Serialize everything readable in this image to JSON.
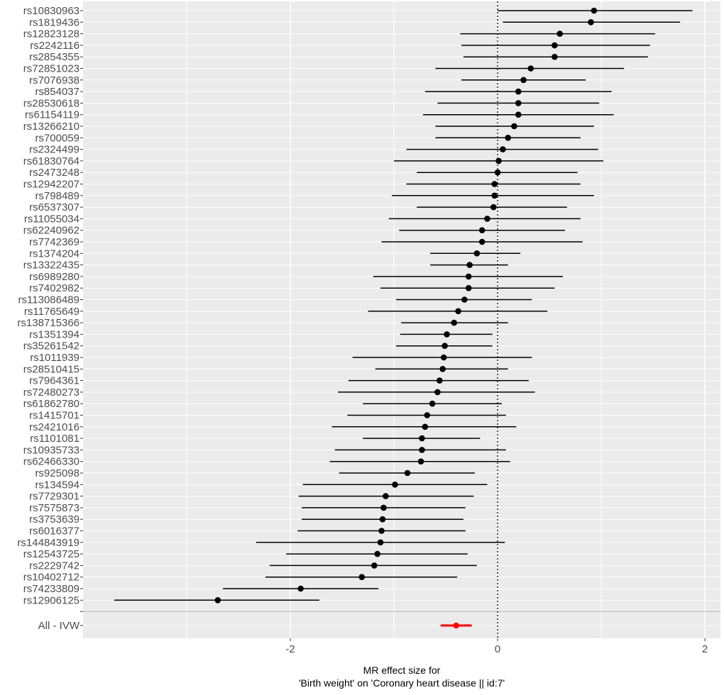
{
  "chart_data": {
    "type": "forest",
    "xlabel_line1": "MR effect size for",
    "xlabel_line2": "'Birth weight' on 'Coronary heart disease || id:7'",
    "xlim": [
      -4.0,
      2.15
    ],
    "x_ticks": [
      -2,
      0,
      2
    ],
    "x_tick_labels": [
      "-2",
      "0",
      "2"
    ],
    "reference_line": 0,
    "grid": true,
    "snps": [
      {
        "label": "rs10830963",
        "est": 0.93,
        "lo": 0.0,
        "hi": 1.88
      },
      {
        "label": "rs1819436",
        "est": 0.9,
        "lo": 0.05,
        "hi": 1.76
      },
      {
        "label": "rs12823128",
        "est": 0.6,
        "lo": -0.36,
        "hi": 1.52
      },
      {
        "label": "rs2242116",
        "est": 0.55,
        "lo": -0.35,
        "hi": 1.47
      },
      {
        "label": "rs2854355",
        "est": 0.55,
        "lo": -0.33,
        "hi": 1.45
      },
      {
        "label": "rs72851023",
        "est": 0.32,
        "lo": -0.6,
        "hi": 1.22
      },
      {
        "label": "rs7076938",
        "est": 0.25,
        "lo": -0.35,
        "hi": 0.85
      },
      {
        "label": "rs854037",
        "est": 0.2,
        "lo": -0.7,
        "hi": 1.1
      },
      {
        "label": "rs28530618",
        "est": 0.2,
        "lo": -0.58,
        "hi": 0.98
      },
      {
        "label": "rs61154119",
        "est": 0.2,
        "lo": -0.72,
        "hi": 1.12
      },
      {
        "label": "rs13266210",
        "est": 0.16,
        "lo": -0.6,
        "hi": 0.93
      },
      {
        "label": "rs700059",
        "est": 0.1,
        "lo": -0.6,
        "hi": 0.8
      },
      {
        "label": "rs2324499",
        "est": 0.05,
        "lo": -0.88,
        "hi": 0.97
      },
      {
        "label": "rs61830764",
        "est": 0.01,
        "lo": -1.0,
        "hi": 1.02
      },
      {
        "label": "rs2473248",
        "est": 0.0,
        "lo": -0.78,
        "hi": 0.77
      },
      {
        "label": "rs12942207",
        "est": -0.03,
        "lo": -0.88,
        "hi": 0.8
      },
      {
        "label": "rs798489",
        "est": -0.03,
        "lo": -1.02,
        "hi": 0.93
      },
      {
        "label": "rs6537307",
        "est": -0.04,
        "lo": -0.78,
        "hi": 0.67
      },
      {
        "label": "rs11055034",
        "est": -0.1,
        "lo": -1.05,
        "hi": 0.8
      },
      {
        "label": "rs62240962",
        "est": -0.15,
        "lo": -0.95,
        "hi": 0.65
      },
      {
        "label": "rs7742369",
        "est": -0.15,
        "lo": -1.12,
        "hi": 0.82
      },
      {
        "label": "rs1374204",
        "est": -0.2,
        "lo": -0.65,
        "hi": 0.22
      },
      {
        "label": "rs13322435",
        "est": -0.27,
        "lo": -0.65,
        "hi": 0.1
      },
      {
        "label": "rs6989280",
        "est": -0.28,
        "lo": -1.2,
        "hi": 0.63
      },
      {
        "label": "rs7402982",
        "est": -0.28,
        "lo": -1.13,
        "hi": 0.55
      },
      {
        "label": "rs113086489",
        "est": -0.32,
        "lo": -0.98,
        "hi": 0.33
      },
      {
        "label": "rs11765649",
        "est": -0.38,
        "lo": -1.25,
        "hi": 0.48
      },
      {
        "label": "rs138715366",
        "est": -0.42,
        "lo": -0.93,
        "hi": 0.1
      },
      {
        "label": "rs1351394",
        "est": -0.49,
        "lo": -0.94,
        "hi": -0.05
      },
      {
        "label": "rs35261542",
        "est": -0.51,
        "lo": -0.98,
        "hi": -0.05
      },
      {
        "label": "rs1011939",
        "est": -0.52,
        "lo": -1.4,
        "hi": 0.33
      },
      {
        "label": "rs28510415",
        "est": -0.53,
        "lo": -1.18,
        "hi": 0.1
      },
      {
        "label": "rs7964361",
        "est": -0.56,
        "lo": -1.44,
        "hi": 0.3
      },
      {
        "label": "rs72480273",
        "est": -0.58,
        "lo": -1.54,
        "hi": 0.36
      },
      {
        "label": "rs61862780",
        "est": -0.63,
        "lo": -1.3,
        "hi": 0.04
      },
      {
        "label": "rs1415701",
        "est": -0.68,
        "lo": -1.45,
        "hi": 0.08
      },
      {
        "label": "rs2421016",
        "est": -0.7,
        "lo": -1.6,
        "hi": 0.18
      },
      {
        "label": "rs1101081",
        "est": -0.73,
        "lo": -1.3,
        "hi": -0.17
      },
      {
        "label": "rs10935733",
        "est": -0.73,
        "lo": -1.57,
        "hi": 0.08
      },
      {
        "label": "rs62466330",
        "est": -0.74,
        "lo": -1.62,
        "hi": 0.12
      },
      {
        "label": "rs925098",
        "est": -0.87,
        "lo": -1.53,
        "hi": -0.22
      },
      {
        "label": "rs134594",
        "est": -0.99,
        "lo": -1.88,
        "hi": -0.1
      },
      {
        "label": "rs7729301",
        "est": -1.08,
        "lo": -1.92,
        "hi": -0.23
      },
      {
        "label": "rs7575873",
        "est": -1.1,
        "lo": -1.89,
        "hi": -0.31
      },
      {
        "label": "rs3753639",
        "est": -1.11,
        "lo": -1.89,
        "hi": -0.33
      },
      {
        "label": "rs6016377",
        "est": -1.12,
        "lo": -1.93,
        "hi": -0.31
      },
      {
        "label": "rs144843919",
        "est": -1.13,
        "lo": -2.33,
        "hi": 0.07
      },
      {
        "label": "rs12543725",
        "est": -1.16,
        "lo": -2.04,
        "hi": -0.29
      },
      {
        "label": "rs2229742",
        "est": -1.19,
        "lo": -2.2,
        "hi": -0.2
      },
      {
        "label": "rs10402712",
        "est": -1.31,
        "lo": -2.24,
        "hi": -0.39
      },
      {
        "label": "rs74233809",
        "est": -1.9,
        "lo": -2.65,
        "hi": -1.15
      },
      {
        "label": "rs12906125",
        "est": -2.7,
        "lo": -3.7,
        "hi": -1.72
      }
    ],
    "summary": {
      "label": "All - IVW",
      "est": -0.4,
      "lo": -0.55,
      "hi": -0.25,
      "color": "#ff0000"
    },
    "colors": {
      "panel": "#ebebeb",
      "grid": "#ffffff",
      "points": "#000000",
      "separator": "#b3b3b3"
    }
  }
}
